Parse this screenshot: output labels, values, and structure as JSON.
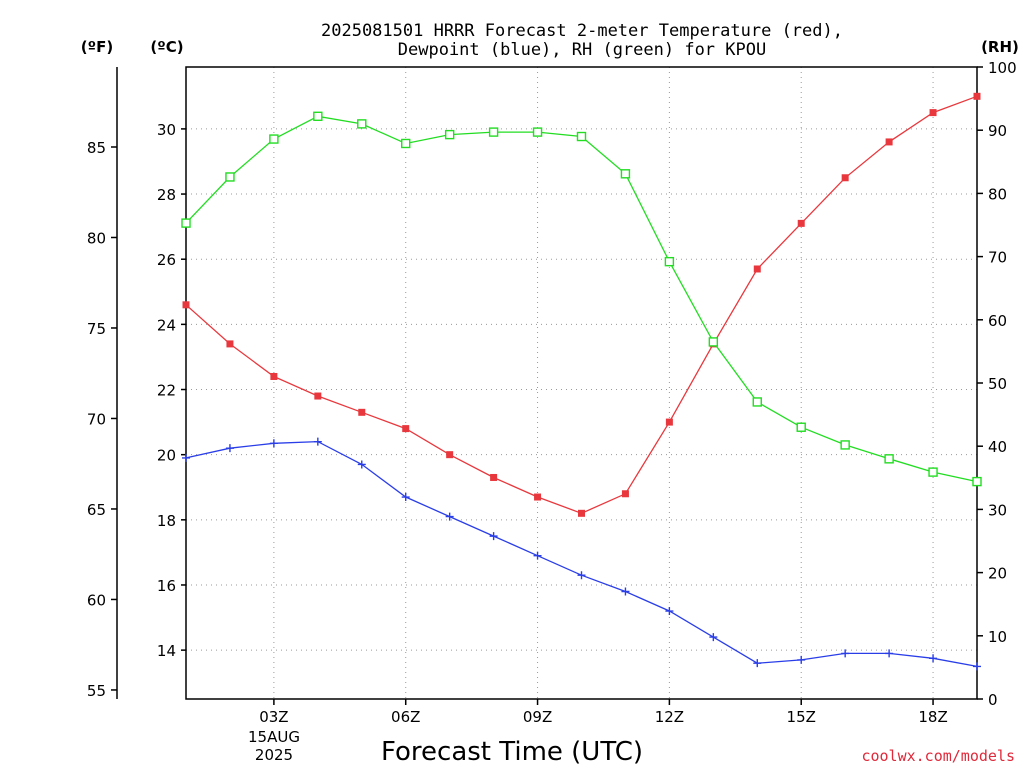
{
  "header": {
    "title_line1": "2025081501 HRRR Forecast 2-meter Temperature (red),",
    "title_line2": "Dewpoint (blue), RH (green) for KPOU",
    "unit_f": "(ºF)",
    "unit_c": "(ºC)",
    "unit_rh": "(RH)"
  },
  "footer": {
    "credit": "coolwx.com/models",
    "credit_color": "#e0293a"
  },
  "chart_data": {
    "type": "line",
    "xlabel": "Forecast Time (UTC)",
    "x": [
      "01Z",
      "02Z",
      "03Z",
      "04Z",
      "05Z",
      "06Z",
      "07Z",
      "08Z",
      "09Z",
      "10Z",
      "11Z",
      "12Z",
      "13Z",
      "14Z",
      "15Z",
      "16Z",
      "17Z",
      "18Z",
      "19Z"
    ],
    "x_ticks": [
      "03Z",
      "06Z",
      "09Z",
      "12Z",
      "15Z",
      "18Z"
    ],
    "date_label": [
      "15AUG",
      "2025"
    ],
    "y_left_celsius": {
      "range": [
        12.5,
        31.9
      ],
      "ticks": [
        14,
        16,
        18,
        20,
        22,
        24,
        26,
        28,
        30
      ]
    },
    "y_left_fahrenheit": {
      "ticks": [
        55,
        60,
        65,
        70,
        75,
        80,
        85
      ]
    },
    "y_right_rh": {
      "range": [
        0,
        100
      ],
      "ticks": [
        0,
        10,
        20,
        30,
        40,
        50,
        60,
        70,
        80,
        90,
        100
      ]
    },
    "grid": true,
    "series": [
      {
        "key": "temperature",
        "axis": "celsius",
        "color": "#e8383d",
        "marker": "filled-square",
        "values": [
          24.6,
          23.4,
          22.4,
          21.8,
          21.3,
          20.8,
          20.0,
          19.3,
          18.7,
          18.2,
          18.8,
          21.0,
          23.4,
          25.7,
          27.1,
          28.5,
          29.6,
          30.5,
          31.0
        ]
      },
      {
        "key": "dewpoint",
        "axis": "celsius",
        "color": "#2a3ee8",
        "marker": "plus",
        "values": [
          19.9,
          20.2,
          20.35,
          20.4,
          19.7,
          18.7,
          18.1,
          17.5,
          16.9,
          16.3,
          15.8,
          15.2,
          14.4,
          13.6,
          13.7,
          13.9,
          13.9,
          13.75,
          13.5
        ]
      },
      {
        "key": "relative_humidity",
        "axis": "rh",
        "color": "#22dd22",
        "marker": "open-square",
        "values": [
          75.3,
          82.6,
          88.6,
          92.2,
          91.0,
          87.9,
          89.3,
          89.7,
          89.7,
          89.0,
          83.1,
          69.2,
          56.5,
          47.0,
          43.0,
          40.2,
          38.0,
          35.9,
          34.4
        ]
      }
    ]
  }
}
